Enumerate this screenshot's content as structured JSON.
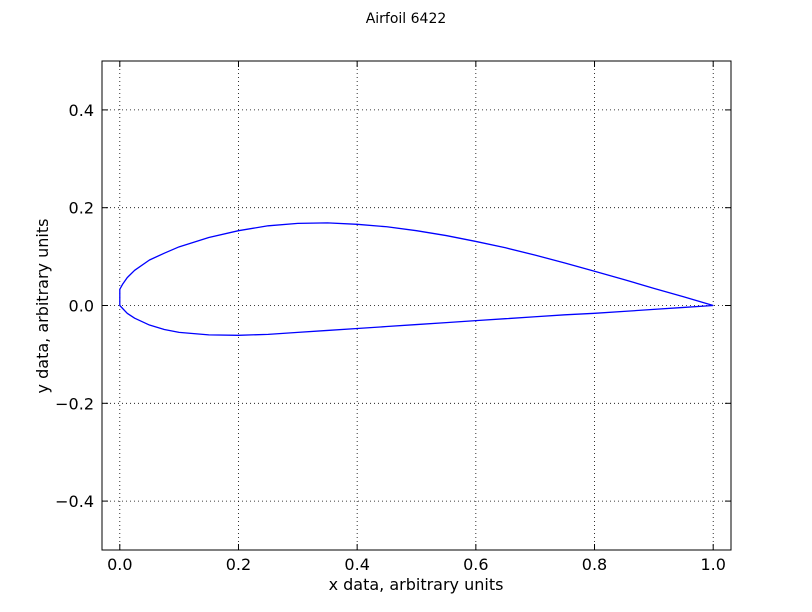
{
  "chart_data": {
    "type": "line",
    "title": "Airfoil 6422",
    "xlabel": "x data, arbitrary units",
    "ylabel": "y data, arbitrary units",
    "xlim": [
      -0.03,
      1.03
    ],
    "ylim": [
      -0.5,
      0.5
    ],
    "xticks": [
      {
        "value": 0.0,
        "label": "0.0"
      },
      {
        "value": 0.2,
        "label": "0.2"
      },
      {
        "value": 0.4,
        "label": "0.4"
      },
      {
        "value": 0.6,
        "label": "0.6"
      },
      {
        "value": 0.8,
        "label": "0.8"
      },
      {
        "value": 1.0,
        "label": "1.0"
      }
    ],
    "yticks": [
      {
        "value": -0.4,
        "label": "−0.4"
      },
      {
        "value": -0.2,
        "label": "−0.2"
      },
      {
        "value": 0.0,
        "label": "0.0"
      },
      {
        "value": 0.2,
        "label": "0.2"
      },
      {
        "value": 0.4,
        "label": "0.4"
      }
    ],
    "grid": true,
    "grid_style": "dotted",
    "series": [
      {
        "color": "#0000ff",
        "x": [
          1.0,
          0.95,
          0.9,
          0.85,
          0.8,
          0.75,
          0.7,
          0.65,
          0.6,
          0.55,
          0.5,
          0.45,
          0.4,
          0.35,
          0.3,
          0.25,
          0.2,
          0.15,
          0.1,
          0.075,
          0.05,
          0.025,
          0.0125,
          0.005,
          0.0,
          0.0,
          0.0125,
          0.025,
          0.05,
          0.075,
          0.1,
          0.15,
          0.2,
          0.25,
          0.3,
          0.35,
          0.4,
          0.45,
          0.5,
          0.55,
          0.6,
          0.65,
          0.7,
          0.75,
          0.8,
          0.85,
          0.9,
          0.95,
          1.0
        ],
        "y": [
          0.0,
          0.018,
          0.035,
          0.053,
          0.07,
          0.087,
          0.103,
          0.118,
          0.131,
          0.143,
          0.153,
          0.161,
          0.166,
          0.169,
          0.168,
          0.163,
          0.153,
          0.139,
          0.12,
          0.107,
          0.093,
          0.072,
          0.057,
          0.044,
          0.033,
          0.0,
          -0.016,
          -0.026,
          -0.04,
          -0.049,
          -0.055,
          -0.06,
          -0.061,
          -0.059,
          -0.055,
          -0.051,
          -0.047,
          -0.043,
          -0.039,
          -0.035,
          -0.031,
          -0.027,
          -0.023,
          -0.019,
          -0.016,
          -0.012,
          -0.008,
          -0.004,
          0.0
        ]
      }
    ]
  }
}
